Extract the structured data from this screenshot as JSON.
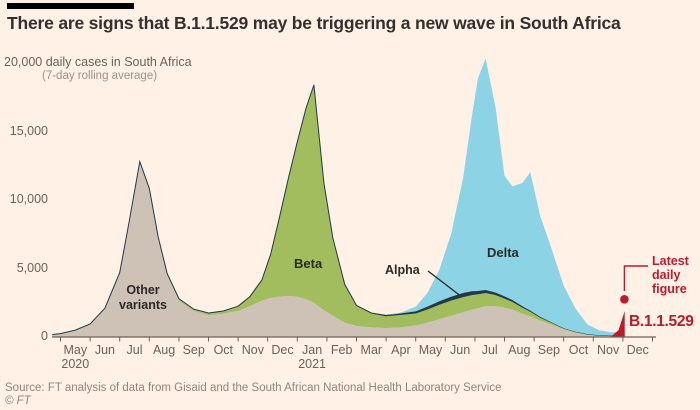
{
  "title": "There are signs that B.1.1.529 may be triggering a new wave in South Africa",
  "source_line": "Source: FT analysis of data from Gisaid and the South African National Health Laboratory Service",
  "copyright": "© FT",
  "colors": {
    "background": "#fff1e5",
    "title_text": "#33302e",
    "axis_text": "#6b6257",
    "gridline": "#e8dbc9",
    "axis_line": "#6b6257",
    "other_variants": "#cdc2b5",
    "beta": "#a1bd5e",
    "alpha": "#24384a",
    "delta": "#8cd3e5",
    "b11529_red": "#b91c2d",
    "label_text": "#2b2a28"
  },
  "axis": {
    "y_top_label": "20,000 daily cases in South Africa",
    "y_sub_label": "(7-day rolling average)",
    "y_ticks": [
      {
        "value": 0,
        "label": "0"
      },
      {
        "value": 5000,
        "label": "5,000"
      },
      {
        "value": 10000,
        "label": "10,000"
      },
      {
        "value": 15000,
        "label": "15,000"
      }
    ],
    "grid_values": [
      5000,
      10000,
      15000,
      20000
    ],
    "months": [
      "May",
      "Jun",
      "Jul",
      "Aug",
      "Sep",
      "Oct",
      "Nov",
      "Dec",
      "Jan",
      "Feb",
      "Mar",
      "Apr",
      "May",
      "Jun",
      "Jul",
      "Aug",
      "Sep",
      "Oct",
      "Nov",
      "Dec"
    ],
    "years": [
      {
        "label": "2020",
        "month_index": 0
      },
      {
        "label": "2021",
        "month_index": 8
      }
    ]
  },
  "annotations": {
    "other_variants": "Other variants",
    "beta": "Beta",
    "alpha": "Alpha",
    "delta": "Delta",
    "latest_daily_figure": "Latest daily figure",
    "b11529": "B.1.1.529"
  },
  "chart_data": {
    "type": "area",
    "stacked": true,
    "title": "There are signs that B.1.1.529 may be triggering a new wave in South Africa",
    "ylabel": "daily cases in South Africa (7-day rolling average)",
    "ylim": [
      0,
      20000
    ],
    "x_unit": "months since 1 May 2020 (x axis spans May 2020 - Dec 2021)",
    "grid": true,
    "x": [
      -0.28,
      0,
      0.5,
      1,
      1.5,
      2,
      2.3,
      2.68,
      3,
      3.3,
      3.6,
      4,
      4.5,
      5,
      5.5,
      6,
      6.4,
      6.8,
      7.1,
      7.4,
      7.7,
      8,
      8.3,
      8.56,
      8.9,
      9.2,
      9.6,
      10,
      10.5,
      11,
      11.5,
      12,
      12.4,
      12.8,
      13.2,
      13.6,
      13.9,
      14.1,
      14.36,
      14.7,
      15,
      15.27,
      15.6,
      15.87,
      16.2,
      16.6,
      17,
      17.4,
      17.8,
      18.2,
      18.6,
      18.85,
      19.06
    ],
    "series": [
      {
        "name": "Other variants",
        "color_key": "other_variants",
        "overlay": false,
        "values": [
          180,
          250,
          500,
          950,
          2100,
          4700,
          8200,
          12800,
          10800,
          7200,
          4500,
          2650,
          1900,
          1600,
          1700,
          1900,
          2250,
          2650,
          2850,
          2950,
          3000,
          2950,
          2750,
          2500,
          1950,
          1550,
          1050,
          800,
          700,
          650,
          700,
          850,
          1050,
          1300,
          1550,
          1800,
          2000,
          2100,
          2250,
          2250,
          2150,
          2000,
          1700,
          1500,
          1200,
          900,
          570,
          350,
          200,
          120,
          95,
          90,
          85
        ]
      },
      {
        "name": "Beta",
        "color_key": "beta",
        "overlay": false,
        "values": [
          0,
          0,
          0,
          0,
          0,
          0,
          0,
          0,
          50,
          100,
          150,
          150,
          140,
          150,
          200,
          350,
          700,
          1500,
          3200,
          5800,
          8600,
          11300,
          14000,
          15900,
          9300,
          5700,
          2800,
          1500,
          1050,
          900,
          950,
          900,
          1000,
          1100,
          1150,
          1150,
          1100,
          1050,
          1000,
          850,
          700,
          600,
          480,
          380,
          260,
          150,
          70,
          30,
          15,
          8,
          4,
          3,
          2
        ]
      },
      {
        "name": "Alpha",
        "color_key": "alpha",
        "overlay": false,
        "values": [
          0,
          0,
          0,
          0,
          0,
          0,
          0,
          0,
          0,
          0,
          0,
          0,
          0,
          0,
          0,
          0,
          0,
          0,
          0,
          0,
          0,
          0,
          0,
          0,
          0,
          0,
          0,
          0,
          0,
          30,
          70,
          120,
          170,
          210,
          240,
          260,
          240,
          210,
          180,
          140,
          110,
          90,
          60,
          45,
          25,
          10,
          0,
          0,
          0,
          0,
          0,
          0,
          0
        ]
      },
      {
        "name": "Delta",
        "color_key": "delta",
        "overlay": false,
        "values": [
          0,
          0,
          0,
          0,
          0,
          0,
          0,
          0,
          0,
          0,
          0,
          0,
          0,
          0,
          0,
          0,
          0,
          0,
          0,
          0,
          0,
          0,
          0,
          0,
          0,
          0,
          0,
          0,
          0,
          0,
          60,
          350,
          1000,
          2300,
          4600,
          8400,
          12800,
          15500,
          16900,
          13500,
          8800,
          8300,
          9000,
          10100,
          7400,
          5300,
          3100,
          1700,
          700,
          370,
          250,
          240,
          255
        ]
      },
      {
        "name": "B.1.1.529",
        "color_key": "b11529_red",
        "overlay": true,
        "values": [
          0,
          0,
          0,
          0,
          0,
          0,
          0,
          0,
          0,
          0,
          0,
          0,
          0,
          0,
          0,
          0,
          0,
          0,
          0,
          0,
          0,
          0,
          0,
          0,
          0,
          0,
          0,
          0,
          0,
          0,
          0,
          0,
          0,
          0,
          0,
          0,
          0,
          0,
          0,
          0,
          0,
          0,
          0,
          0,
          0,
          0,
          0,
          0,
          0,
          0,
          40,
          500,
          1900
        ]
      }
    ],
    "peaks_note": {
      "wave1_other_variants": {
        "when": "mid-Jul 2020",
        "approx_peak": 12800
      },
      "wave2_beta": {
        "when": "mid-Jan 2021",
        "approx_peak_total": 18400
      },
      "wave3_delta": {
        "when": "early-mid Jul 2021",
        "approx_peak_total": 20300
      },
      "wave4_b11529": {
        "when": "late Nov 2021",
        "approx_latest_average": 1900
      }
    },
    "latest_point": {
      "x": 19.05,
      "value": 2750,
      "label": "Latest daily figure"
    }
  }
}
